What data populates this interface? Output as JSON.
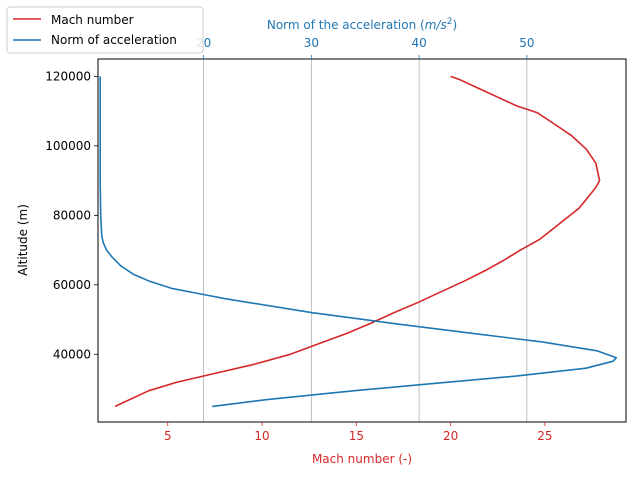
{
  "chart_data": {
    "type": "line",
    "title": "",
    "ylabel": "Altitude (m)",
    "ylim": [
      20500,
      125000
    ],
    "yticks": [
      40000,
      60000,
      80000,
      100000,
      120000
    ],
    "grid_x_top": true,
    "legend_placement": "top-left (outside axes)",
    "x_bottom": {
      "label": "Mach number (-)",
      "lim": [
        1.3,
        29.3
      ],
      "ticks": [
        5,
        10,
        15,
        20,
        25
      ],
      "color": "#d62728"
    },
    "x_top": {
      "label": "Norm of the acceleration (m/s²)",
      "label_main": "Norm of the acceleration (",
      "label_unit": "m/s",
      "label_exp": "2",
      "label_close": ")",
      "lim": [
        10.2,
        59.2
      ],
      "ticks": [
        20,
        30,
        40,
        50
      ],
      "color": "#1f77b4"
    },
    "series": [
      {
        "name": "Mach number",
        "axis": "bottom",
        "color": "#d62728",
        "points": [
          [
            2.2,
            25000
          ],
          [
            3.0,
            27000
          ],
          [
            4.0,
            29500
          ],
          [
            5.5,
            32000
          ],
          [
            7.5,
            34500
          ],
          [
            9.5,
            37000
          ],
          [
            11.5,
            40000
          ],
          [
            13.0,
            43000
          ],
          [
            14.5,
            46000
          ],
          [
            15.8,
            49000
          ],
          [
            17.0,
            52000
          ],
          [
            18.3,
            55000
          ],
          [
            19.5,
            58000
          ],
          [
            20.7,
            61000
          ],
          [
            21.8,
            64000
          ],
          [
            22.8,
            67000
          ],
          [
            23.7,
            70000
          ],
          [
            24.7,
            73000
          ],
          [
            25.4,
            76000
          ],
          [
            26.1,
            79000
          ],
          [
            26.8,
            82000
          ],
          [
            27.4,
            86000
          ],
          [
            27.7,
            88000
          ],
          [
            27.9,
            90000
          ],
          [
            27.7,
            95000
          ],
          [
            27.2,
            99000
          ],
          [
            26.4,
            103000
          ],
          [
            25.3,
            107000
          ],
          [
            24.6,
            109500
          ],
          [
            23.5,
            111500
          ],
          [
            22.5,
            114000
          ],
          [
            21.5,
            116500
          ],
          [
            20.5,
            119000
          ],
          [
            20.0,
            120000
          ]
        ]
      },
      {
        "name": "Norm of acceleration",
        "axis": "top",
        "color": "#1f77b4",
        "points": [
          [
            20.8,
            25000
          ],
          [
            26.0,
            27000
          ],
          [
            34.0,
            29500
          ],
          [
            41.0,
            31500
          ],
          [
            49.0,
            33700
          ],
          [
            55.5,
            36000
          ],
          [
            58.0,
            38000
          ],
          [
            58.3,
            39000
          ],
          [
            56.5,
            41000
          ],
          [
            51.5,
            43500
          ],
          [
            45.0,
            46000
          ],
          [
            38.5,
            48500
          ],
          [
            30.0,
            52000
          ],
          [
            22.0,
            56000
          ],
          [
            19.5,
            57500
          ],
          [
            17.0,
            59000
          ],
          [
            15.0,
            61000
          ],
          [
            13.5,
            63000
          ],
          [
            12.3,
            65500
          ],
          [
            11.5,
            68000
          ],
          [
            11.0,
            70000
          ],
          [
            10.7,
            72000
          ],
          [
            10.55,
            74000
          ],
          [
            10.5,
            77000
          ],
          [
            10.45,
            80000
          ],
          [
            10.4,
            90000
          ],
          [
            10.4,
            100000
          ],
          [
            10.4,
            110000
          ],
          [
            10.4,
            120000
          ]
        ]
      }
    ]
  }
}
